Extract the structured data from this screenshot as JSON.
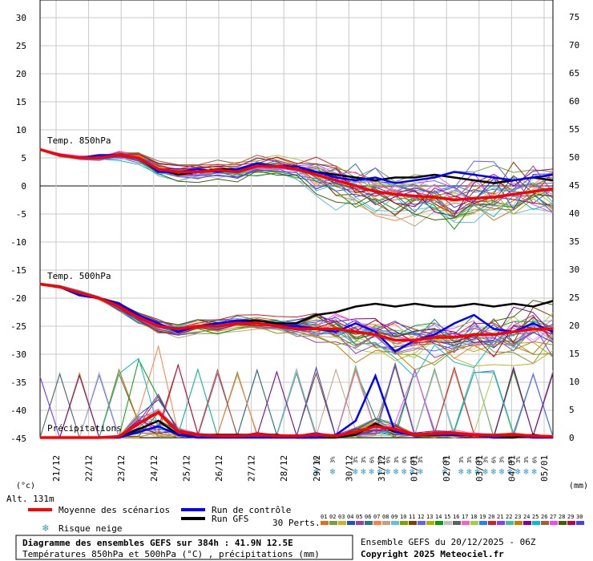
{
  "chart_data": {
    "type": "line",
    "x_dates": [
      "21/12",
      "22/12",
      "23/12",
      "24/12",
      "25/12",
      "26/12",
      "27/12",
      "28/12",
      "29/12",
      "30/12",
      "31/12",
      "01/01",
      "02/01",
      "03/01",
      "04/01",
      "05/01"
    ],
    "left_axis_ticks": [
      30,
      25,
      20,
      15,
      10,
      5,
      0,
      -5,
      -10,
      -15,
      -20,
      -25,
      -30,
      -35,
      -40,
      -45
    ],
    "right_axis_ticks": [
      75,
      70,
      65,
      60,
      55,
      50,
      45,
      40,
      35,
      30,
      25,
      20,
      15,
      10,
      5,
      0
    ],
    "left_unit": "(°c)",
    "right_unit": "(mm)",
    "altitude": "Alt. 131m",
    "panels": {
      "t850_label": "Temp. 850hPa",
      "t500_label": "Temp. 500hPa",
      "precip_label": "Précipitations"
    },
    "series": [
      {
        "name": "Moyenne des scénarios",
        "color": "#ff0000",
        "t850": [
          6.5,
          5.5,
          5.0,
          5.0,
          5.5,
          5.0,
          3.0,
          2.5,
          2.5,
          2.8,
          2.5,
          3.5,
          3.5,
          3.0,
          2.0,
          1.0,
          0.0,
          -1.0,
          -1.5,
          -1.8,
          -2.0,
          -2.5,
          -2.2,
          -2.0,
          -1.5,
          -1.0,
          -0.5
        ],
        "t500": [
          -17.5,
          -18.0,
          -19.0,
          -20.0,
          -21.5,
          -23.5,
          -25.0,
          -25.5,
          -25.0,
          -25.0,
          -24.5,
          -24.5,
          -25.0,
          -25.5,
          -25.5,
          -25.5,
          -26.0,
          -26.5,
          -27.5,
          -27.5,
          -27.0,
          -27.0,
          -26.5,
          -26.5,
          -26.0,
          -25.5,
          -25.5
        ],
        "precip": [
          0,
          0,
          0,
          0,
          0.2,
          2.5,
          4.5,
          1,
          0.5,
          0.3,
          0.3,
          0.5,
          0.3,
          0.3,
          0.5,
          0.3,
          1.0,
          2.0,
          1.5,
          0.5,
          0.7,
          0.8,
          0.5,
          0.4,
          0.5,
          0.3,
          0.2
        ]
      },
      {
        "name": "Run de contrôle",
        "color": "#0000ff",
        "t850": [
          6.5,
          5.5,
          5.0,
          5.5,
          5.5,
          5.0,
          2.5,
          2.5,
          3.0,
          2.5,
          3.0,
          4.0,
          3.5,
          3.5,
          2.5,
          1.5,
          1.0,
          1.5,
          0.5,
          1.0,
          1.5,
          2.5,
          2.0,
          1.5,
          1.0,
          1.5,
          2.0
        ],
        "t500": [
          -17.5,
          -18.0,
          -19.5,
          -20.0,
          -21.0,
          -23.0,
          -24.5,
          -26.0,
          -25.0,
          -24.5,
          -24.0,
          -24.5,
          -25.0,
          -25.0,
          -25.5,
          -26.0,
          -24.5,
          -26.0,
          -29.5,
          -27.5,
          -26.5,
          -24.5,
          -23.0,
          -25.5,
          -26.0,
          -24.5,
          -26.0
        ],
        "precip": [
          0,
          0,
          0,
          0,
          0,
          1,
          2,
          0.5,
          0,
          0,
          0,
          0,
          0,
          0,
          0,
          0.5,
          3,
          11,
          1,
          0.5,
          0.5,
          0.5,
          0.5,
          0,
          0.5,
          0,
          0
        ]
      },
      {
        "name": "Run GFS",
        "color": "#000000",
        "t850": [
          6.5,
          5.5,
          5.0,
          5.0,
          5.5,
          5.0,
          3.0,
          2.0,
          2.5,
          3.0,
          3.0,
          4.0,
          3.5,
          3.0,
          2.5,
          2.0,
          1.5,
          1.0,
          1.5,
          1.5,
          2.0,
          1.5,
          1.0,
          0.5,
          1.0,
          1.5,
          1.0
        ],
        "t500": [
          -17.5,
          -18.0,
          -19.5,
          -20.0,
          -21.0,
          -23.5,
          -25.0,
          -25.5,
          -25.0,
          -24.5,
          -24.0,
          -24.0,
          -24.5,
          -24.5,
          -23.0,
          -22.5,
          -21.5,
          -21.0,
          -21.5,
          -21.0,
          -21.5,
          -21.5,
          -21.0,
          -21.5,
          -21.0,
          -21.5,
          -20.5
        ],
        "precip": [
          0,
          0,
          0,
          0,
          0,
          1.5,
          3,
          0.5,
          0.5,
          0.5,
          0.5,
          0.5,
          0.5,
          0,
          0,
          0,
          0.5,
          2.5,
          1,
          0.5,
          0.5,
          0.5,
          0.5,
          0,
          0,
          0.5,
          0
        ]
      }
    ],
    "perturbation_count_label": "30 Perts.",
    "perturbations": [
      "01",
      "02",
      "03",
      "04",
      "05",
      "06",
      "07",
      "08",
      "09",
      "10",
      "11",
      "12",
      "13",
      "14",
      "15",
      "16",
      "17",
      "18",
      "19",
      "20",
      "21",
      "22",
      "23",
      "24",
      "25",
      "26",
      "27",
      "28",
      "29",
      "30"
    ],
    "perturbation_colors": [
      "#e07020",
      "#70a040",
      "#d0b020",
      "#2050d0",
      "#a040a0",
      "#208080",
      "#ff8040",
      "#c0a080",
      "#60c0e0",
      "#80a000",
      "#804000",
      "#6060ff",
      "#b0b000",
      "#00a000",
      "#c0c0c0",
      "#606060",
      "#ff60c0",
      "#a0d040",
      "#2080ff",
      "#d02020",
      "#8040ff",
      "#40c0a0",
      "#c08000",
      "#8000a0",
      "#00c0c0",
      "#a06030",
      "#ff40ff",
      "#406000",
      "#c00040",
      "#4040ff"
    ],
    "snow_risk": [
      {
        "date_index": 8.8,
        "pct": "6%"
      },
      {
        "date_index": 9.3,
        "pct": "3%"
      },
      {
        "date_index": 10.0,
        "pct": "3%"
      },
      {
        "date_index": 10.25,
        "pct": "3%"
      },
      {
        "date_index": 10.5,
        "pct": "6%"
      },
      {
        "date_index": 10.75,
        "pct": "3%"
      },
      {
        "date_index": 11.0,
        "pct": "6%"
      },
      {
        "date_index": 11.25,
        "pct": "3%"
      },
      {
        "date_index": 11.5,
        "pct": "6%"
      },
      {
        "date_index": 11.75,
        "pct": "3%"
      },
      {
        "date_index": 12.0,
        "pct": "3%"
      },
      {
        "date_index": 12.75,
        "pct": "3%"
      },
      {
        "date_index": 13.25,
        "pct": "3%"
      },
      {
        "date_index": 13.5,
        "pct": "3%"
      },
      {
        "date_index": 13.75,
        "pct": "3%"
      },
      {
        "date_index": 14.0,
        "pct": "3%"
      },
      {
        "date_index": 14.25,
        "pct": "6%"
      },
      {
        "date_index": 14.5,
        "pct": "3%"
      },
      {
        "date_index": 14.75,
        "pct": "6%"
      },
      {
        "date_index": 15.0,
        "pct": "3%"
      },
      {
        "date_index": 15.25,
        "pct": "3%"
      },
      {
        "date_index": 15.5,
        "pct": "6%"
      }
    ],
    "legend": {
      "mean": "Moyenne des scénarios",
      "control": "Run de contrôle",
      "gfs": "Run GFS",
      "snow": "Risque neige"
    },
    "footer": {
      "title": "Diagramme des ensembles GEFS sur 384h : 41.9N 12.5E",
      "subtitle": "Températures 850hPa et 500hPa (°C) , précipitations (mm)",
      "run": "Ensemble GEFS du 20/12/2025 - 06Z",
      "copyright": "Copyright 2025 Meteociel.fr"
    }
  }
}
